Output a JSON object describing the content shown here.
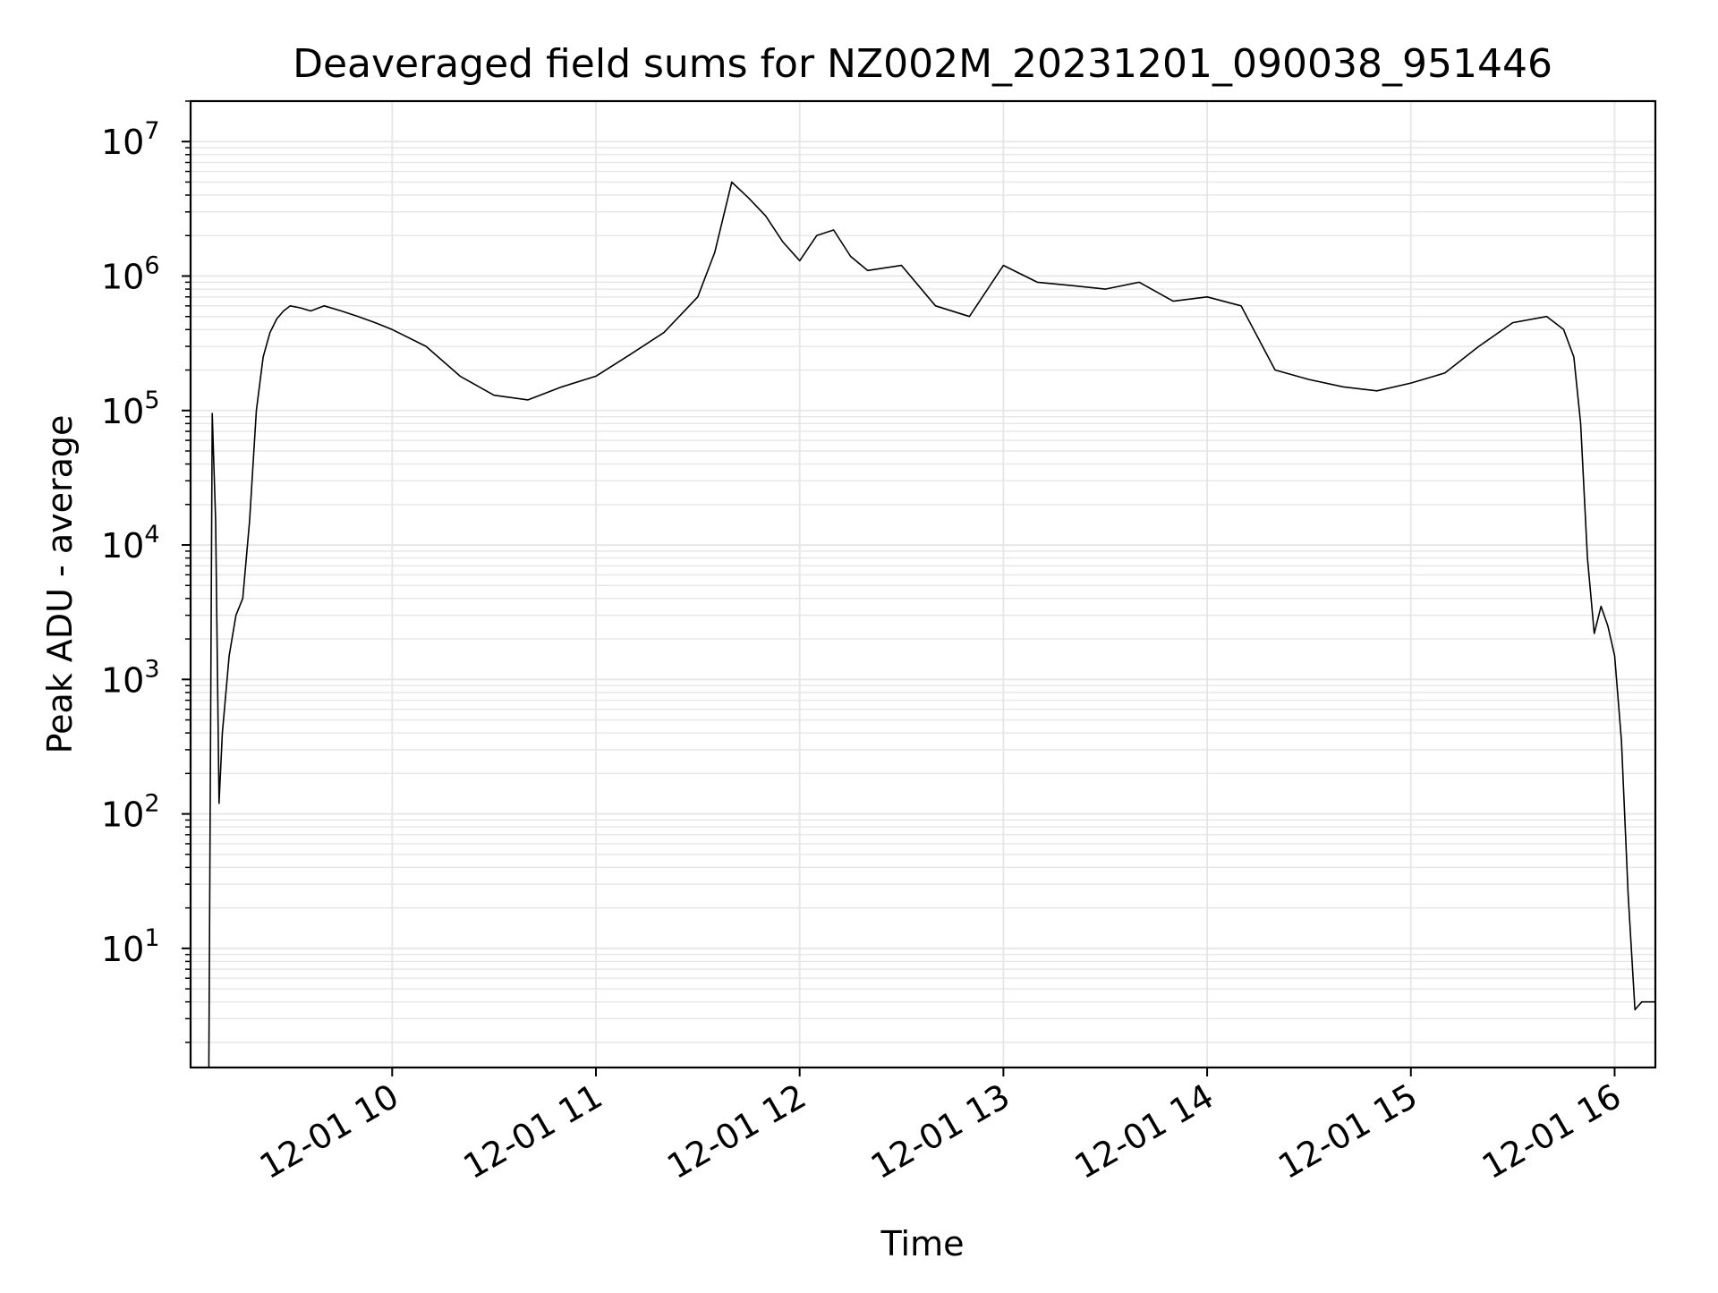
{
  "chart_data": {
    "type": "line",
    "title": "Deaveraged field sums for NZ002M_20231201_090038_951446",
    "xlabel": "Time",
    "ylabel": "Peak ADU - average",
    "yscale": "log",
    "grid": true,
    "line_color": "#000000",
    "grid_color": "#e6e6e6",
    "xlim": [
      "2023-12-01 09:00:38",
      "2023-12-01 16:12:00"
    ],
    "ylim": [
      1.3,
      20000000
    ],
    "x_ticks": [
      {
        "value": "2023-12-01 10:00",
        "label": "12-01 10"
      },
      {
        "value": "2023-12-01 11:00",
        "label": "12-01 11"
      },
      {
        "value": "2023-12-01 12:00",
        "label": "12-01 12"
      },
      {
        "value": "2023-12-01 13:00",
        "label": "12-01 13"
      },
      {
        "value": "2023-12-01 14:00",
        "label": "12-01 14"
      },
      {
        "value": "2023-12-01 15:00",
        "label": "12-01 15"
      },
      {
        "value": "2023-12-01 16:00",
        "label": "12-01 16"
      }
    ],
    "y_ticks": [
      {
        "value": 10,
        "base": "10",
        "exp": "1"
      },
      {
        "value": 100,
        "base": "10",
        "exp": "2"
      },
      {
        "value": 1000,
        "base": "10",
        "exp": "3"
      },
      {
        "value": 10000,
        "base": "10",
        "exp": "4"
      },
      {
        "value": 100000,
        "base": "10",
        "exp": "5"
      },
      {
        "value": 1000000,
        "base": "10",
        "exp": "6"
      },
      {
        "value": 10000000,
        "base": "10",
        "exp": "7"
      }
    ],
    "series": [
      {
        "x": [
          "2023-12-01 09:06",
          "2023-12-01 09:07",
          "2023-12-01 09:08",
          "2023-12-01 09:09",
          "2023-12-01 09:10",
          "2023-12-01 09:12",
          "2023-12-01 09:14",
          "2023-12-01 09:16",
          "2023-12-01 09:18",
          "2023-12-01 09:20",
          "2023-12-01 09:22",
          "2023-12-01 09:24",
          "2023-12-01 09:26",
          "2023-12-01 09:28",
          "2023-12-01 09:30",
          "2023-12-01 09:33",
          "2023-12-01 09:36",
          "2023-12-01 09:40",
          "2023-12-01 09:45",
          "2023-12-01 09:50",
          "2023-12-01 09:55",
          "2023-12-01 10:00",
          "2023-12-01 10:10",
          "2023-12-01 10:20",
          "2023-12-01 10:30",
          "2023-12-01 10:40",
          "2023-12-01 10:50",
          "2023-12-01 11:00",
          "2023-12-01 11:10",
          "2023-12-01 11:20",
          "2023-12-01 11:30",
          "2023-12-01 11:35",
          "2023-12-01 11:40",
          "2023-12-01 11:45",
          "2023-12-01 11:50",
          "2023-12-01 11:55",
          "2023-12-01 12:00",
          "2023-12-01 12:05",
          "2023-12-01 12:10",
          "2023-12-01 12:15",
          "2023-12-01 12:20",
          "2023-12-01 12:30",
          "2023-12-01 12:40",
          "2023-12-01 12:50",
          "2023-12-01 13:00",
          "2023-12-01 13:10",
          "2023-12-01 13:20",
          "2023-12-01 13:30",
          "2023-12-01 13:40",
          "2023-12-01 13:50",
          "2023-12-01 14:00",
          "2023-12-01 14:10",
          "2023-12-01 14:20",
          "2023-12-01 14:30",
          "2023-12-01 14:40",
          "2023-12-01 14:50",
          "2023-12-01 15:00",
          "2023-12-01 15:10",
          "2023-12-01 15:20",
          "2023-12-01 15:30",
          "2023-12-01 15:40",
          "2023-12-01 15:45",
          "2023-12-01 15:48",
          "2023-12-01 15:50",
          "2023-12-01 15:52",
          "2023-12-01 15:54",
          "2023-12-01 15:56",
          "2023-12-01 15:58",
          "2023-12-01 16:00",
          "2023-12-01 16:02",
          "2023-12-01 16:04",
          "2023-12-01 16:06",
          "2023-12-01 16:08",
          "2023-12-01 16:10",
          "2023-12-01 16:12"
        ],
        "y": [
          1.3,
          95000,
          15000,
          120,
          400,
          1500,
          3000,
          4000,
          15000,
          100000,
          250000,
          380000,
          480000,
          550000,
          600000,
          580000,
          550000,
          600000,
          550000,
          500000,
          450000,
          400000,
          300000,
          180000,
          130000,
          120000,
          150000,
          180000,
          260000,
          380000,
          700000,
          1500000,
          5000000,
          3800000,
          2800000,
          1800000,
          1300000,
          2000000,
          2200000,
          1400000,
          1100000,
          1200000,
          600000,
          500000,
          1200000,
          900000,
          850000,
          800000,
          900000,
          650000,
          700000,
          600000,
          200000,
          170000,
          150000,
          140000,
          160000,
          190000,
          300000,
          450000,
          500000,
          400000,
          250000,
          80000,
          8000,
          2200,
          3500,
          2500,
          1500,
          350,
          25,
          3.5,
          4,
          4,
          4
        ]
      }
    ]
  }
}
